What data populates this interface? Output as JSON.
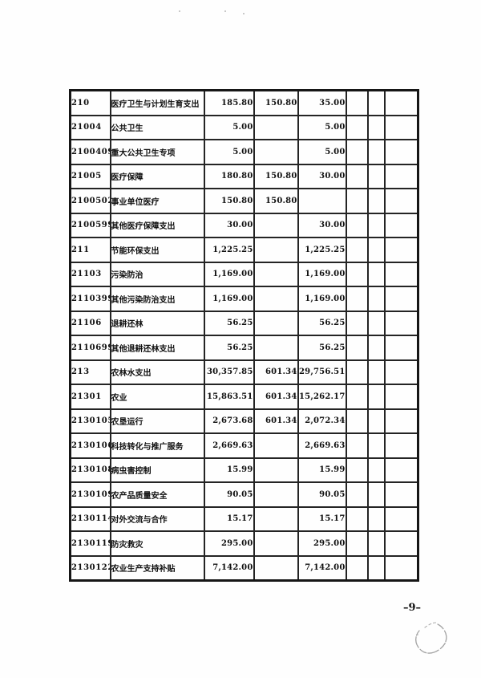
{
  "page": {
    "number_label": "–9–"
  },
  "colors": {
    "paper": "#fefefe",
    "ink": "#101010",
    "table_border": "#242424"
  },
  "table": {
    "rows": [
      {
        "code": "210",
        "name": "医疗卫生与计划生育支出",
        "amounts": [
          "185.80",
          "150.80",
          "35.00"
        ]
      },
      {
        "code": "21004",
        "name": "公共卫生",
        "amounts": [
          "5.00",
          "",
          "5.00"
        ]
      },
      {
        "code": "2100409",
        "name": "重大公共卫生专项",
        "amounts": [
          "5.00",
          "",
          "5.00"
        ]
      },
      {
        "code": "21005",
        "name": "医疗保障",
        "amounts": [
          "180.80",
          "150.80",
          "30.00"
        ]
      },
      {
        "code": "2100502",
        "name": "事业单位医疗",
        "amounts": [
          "150.80",
          "150.80",
          ""
        ]
      },
      {
        "code": "2100599",
        "name": "其他医疗保障支出",
        "amounts": [
          "30.00",
          "",
          "30.00"
        ]
      },
      {
        "code": "211",
        "name": "节能环保支出",
        "amounts": [
          "1,225.25",
          "",
          "1,225.25"
        ]
      },
      {
        "code": "21103",
        "name": "污染防治",
        "amounts": [
          "1,169.00",
          "",
          "1,169.00"
        ]
      },
      {
        "code": "2110399",
        "name": "其他污染防治支出",
        "amounts": [
          "1,169.00",
          "",
          "1,169.00"
        ]
      },
      {
        "code": "21106",
        "name": "退耕还林",
        "amounts": [
          "56.25",
          "",
          "56.25"
        ]
      },
      {
        "code": "2110699",
        "name": "其他退耕还林支出",
        "amounts": [
          "56.25",
          "",
          "56.25"
        ]
      },
      {
        "code": "213",
        "name": "农林水支出",
        "amounts": [
          "30,357.85",
          "601.34",
          "29,756.51"
        ]
      },
      {
        "code": "21301",
        "name": "农业",
        "amounts": [
          "15,863.51",
          "601.34",
          "15,262.17"
        ]
      },
      {
        "code": "2130105",
        "name": "农垦运行",
        "amounts": [
          "2,673.68",
          "601.34",
          "2,072.34"
        ]
      },
      {
        "code": "2130106",
        "name": "科技转化与推广服务",
        "amounts": [
          "2,669.63",
          "",
          "2,669.63"
        ]
      },
      {
        "code": "2130108",
        "name": "病虫害控制",
        "amounts": [
          "15.99",
          "",
          "15.99"
        ]
      },
      {
        "code": "2130109",
        "name": "农产品质量安全",
        "amounts": [
          "90.05",
          "",
          "90.05"
        ]
      },
      {
        "code": "2130114",
        "name": "对外交流与合作",
        "amounts": [
          "15.17",
          "",
          "15.17"
        ]
      },
      {
        "code": "2130119",
        "name": "防灾救灾",
        "amounts": [
          "295.00",
          "",
          "295.00"
        ]
      },
      {
        "code": "2130122",
        "name": "农业生产支持补贴",
        "amounts": [
          "7,142.00",
          "",
          "7,142.00"
        ]
      }
    ]
  }
}
